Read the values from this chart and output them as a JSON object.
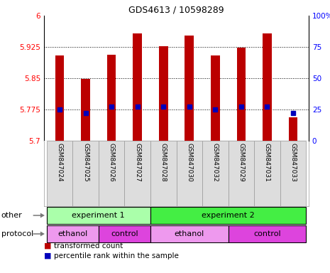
{
  "title": "GDS4613 / 10598289",
  "samples": [
    "GSM847024",
    "GSM847025",
    "GSM847026",
    "GSM847027",
    "GSM847028",
    "GSM847030",
    "GSM847032",
    "GSM847029",
    "GSM847031",
    "GSM847033"
  ],
  "bar_values": [
    5.905,
    5.848,
    5.906,
    5.958,
    5.926,
    5.952,
    5.905,
    5.923,
    5.958,
    5.756
  ],
  "percentile_values": [
    25,
    22,
    27,
    27,
    27,
    27,
    25,
    27,
    27,
    22
  ],
  "ymin": 5.7,
  "ymax": 6.0,
  "yticks": [
    5.7,
    5.775,
    5.85,
    5.925,
    6.0
  ],
  "ytick_labels": [
    "5.7",
    "5.775",
    "5.85",
    "5.925",
    "6"
  ],
  "right_yticks": [
    0,
    25,
    50,
    75,
    100
  ],
  "right_ytick_labels": [
    "0",
    "25",
    "50",
    "75",
    "100%"
  ],
  "bar_color": "#bb0000",
  "percentile_color": "#0000bb",
  "other_row": [
    {
      "label": "experiment 1",
      "start": 0,
      "end": 4,
      "color": "#aaffaa"
    },
    {
      "label": "experiment 2",
      "start": 4,
      "end": 10,
      "color": "#44ee44"
    }
  ],
  "protocol_row": [
    {
      "label": "ethanol",
      "start": 0,
      "end": 2,
      "color": "#ee99ee"
    },
    {
      "label": "control",
      "start": 2,
      "end": 4,
      "color": "#dd44dd"
    },
    {
      "label": "ethanol",
      "start": 4,
      "end": 7,
      "color": "#ee99ee"
    },
    {
      "label": "control",
      "start": 7,
      "end": 10,
      "color": "#dd44dd"
    }
  ],
  "legend_items": [
    {
      "color": "#bb0000",
      "label": "transformed count"
    },
    {
      "color": "#0000bb",
      "label": "percentile rank within the sample"
    }
  ],
  "sample_bg": "#dddddd",
  "bar_width": 0.35
}
